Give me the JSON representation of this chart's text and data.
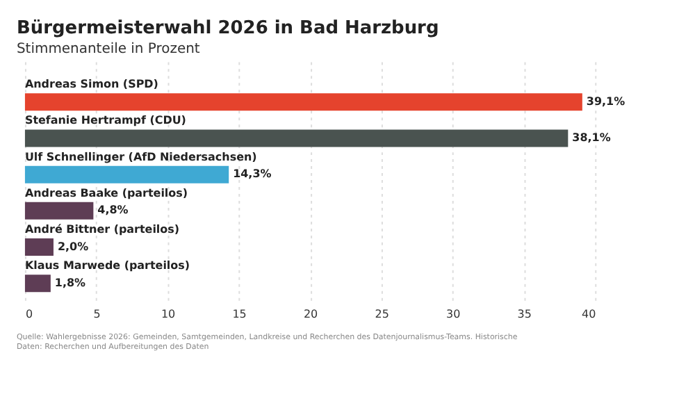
{
  "chart_data": {
    "type": "bar",
    "orientation": "horizontal",
    "title": "Bürgermeisterwahl 2026 in Bad Harzburg",
    "subtitle": "Stimmenanteile in Prozent",
    "categories": [
      "Andreas Simon (SPD)",
      "Stefanie Hertrampf (CDU)",
      "Ulf Schnellinger (AfD Niedersachsen)",
      "Andreas Baake (parteilos)",
      "André Bittner (parteilos)",
      "Klaus Marwede (parteilos)"
    ],
    "values": [
      39.1,
      38.1,
      14.3,
      4.8,
      2.0,
      1.8
    ],
    "value_labels": [
      "39,1%",
      "38,1%",
      "14,3%",
      "4,8%",
      "2,0%",
      "1,8%"
    ],
    "colors": [
      "#e5432d",
      "#4a5350",
      "#3fa9d3",
      "#5e3d55",
      "#5e3d55",
      "#5e3d55"
    ],
    "xlim": [
      0,
      40
    ],
    "xticks": [
      0,
      5,
      10,
      15,
      20,
      25,
      30,
      35,
      40
    ],
    "grid": "x",
    "legend": false,
    "annotations": [
      "Quelle: Wahlergebnisse 2026: Gemeinden, Samtgemeinden, Landkreise und Recherchen des Datenjournalismus-Teams. Historische Daten: Recherchen und Aufbereitungen des Daten"
    ]
  }
}
